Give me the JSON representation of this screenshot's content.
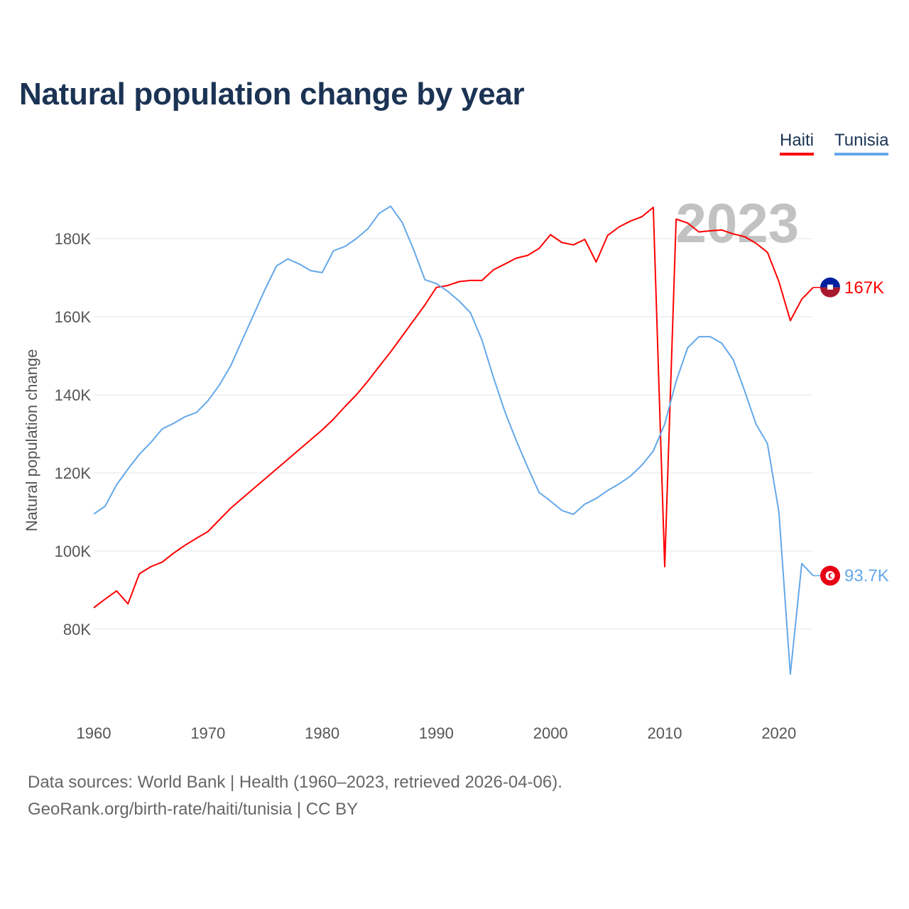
{
  "chart_data": {
    "type": "line",
    "title": "Natural population change by year",
    "xlabel": "",
    "ylabel": "Natural population change",
    "xlim": [
      1960,
      2023
    ],
    "ylim": [
      62000,
      195000
    ],
    "yticks": [
      80000,
      100000,
      120000,
      140000,
      160000,
      180000
    ],
    "ytick_labels": [
      "80K",
      "100K",
      "120K",
      "140K",
      "160K",
      "180K"
    ],
    "xticks": [
      1960,
      1970,
      1980,
      1990,
      2000,
      2010,
      2020
    ],
    "xtick_labels": [
      "1960",
      "1970",
      "1980",
      "1990",
      "2000",
      "2010",
      "2020"
    ],
    "grid": true,
    "legend_placement": "top-right",
    "year_watermark": "2023",
    "x": [
      1960,
      1961,
      1962,
      1963,
      1964,
      1965,
      1966,
      1967,
      1968,
      1969,
      1970,
      1971,
      1972,
      1973,
      1974,
      1975,
      1976,
      1977,
      1978,
      1979,
      1980,
      1981,
      1982,
      1983,
      1984,
      1985,
      1986,
      1987,
      1988,
      1989,
      1990,
      1991,
      1992,
      1993,
      1994,
      1995,
      1996,
      1997,
      1998,
      1999,
      2000,
      2001,
      2002,
      2003,
      2004,
      2005,
      2006,
      2007,
      2008,
      2009,
      2010,
      2011,
      2012,
      2013,
      2014,
      2015,
      2016,
      2017,
      2018,
      2019,
      2020,
      2021,
      2022,
      2023
    ],
    "series": [
      {
        "name": "Haiti",
        "color": "#ff0000",
        "end_label": "167K",
        "flag": "haiti-flag",
        "values": [
          85500,
          87700,
          89800,
          86500,
          94200,
          96000,
          97200,
          99500,
          101500,
          103300,
          105000,
          108000,
          111000,
          113500,
          116000,
          118500,
          121000,
          123500,
          126000,
          128500,
          131000,
          133800,
          137000,
          140000,
          143500,
          147300,
          151000,
          155000,
          159000,
          163000,
          167500,
          168000,
          169000,
          169300,
          169300,
          172000,
          173500,
          175000,
          175700,
          177500,
          181000,
          179000,
          178400,
          179800,
          174000,
          180800,
          183000,
          184500,
          185600,
          188000,
          96000,
          185000,
          184000,
          181700,
          182000,
          182200,
          181200,
          180500,
          178800,
          176500,
          169000,
          159000,
          164500,
          167500
        ]
      },
      {
        "name": "Tunisia",
        "color": "#64a8ea",
        "end_label": "93.7K",
        "flag": "tunisia-flag",
        "values": [
          109500,
          111500,
          117000,
          121000,
          124800,
          127800,
          131300,
          132700,
          134400,
          135500,
          138500,
          142500,
          147500,
          154000,
          160500,
          167000,
          173000,
          174800,
          173500,
          171800,
          171300,
          176900,
          178000,
          180000,
          182500,
          186500,
          188300,
          184200,
          177300,
          169500,
          168500,
          166500,
          164000,
          161000,
          154000,
          144500,
          135700,
          128300,
          121500,
          115000,
          112800,
          110400,
          109400,
          112000,
          113500,
          115500,
          117200,
          119200,
          122000,
          125600,
          132500,
          143500,
          152000,
          154900,
          154900,
          153200,
          149000,
          141000,
          132500,
          127500,
          110000,
          68500,
          96800,
          93700
        ]
      }
    ]
  },
  "footer": {
    "line1": "Data sources: World Bank | Health (1960–2023, retrieved 2026-04-06).",
    "line2": "GeoRank.org/birth-rate/haiti/tunisia | CC BY"
  }
}
